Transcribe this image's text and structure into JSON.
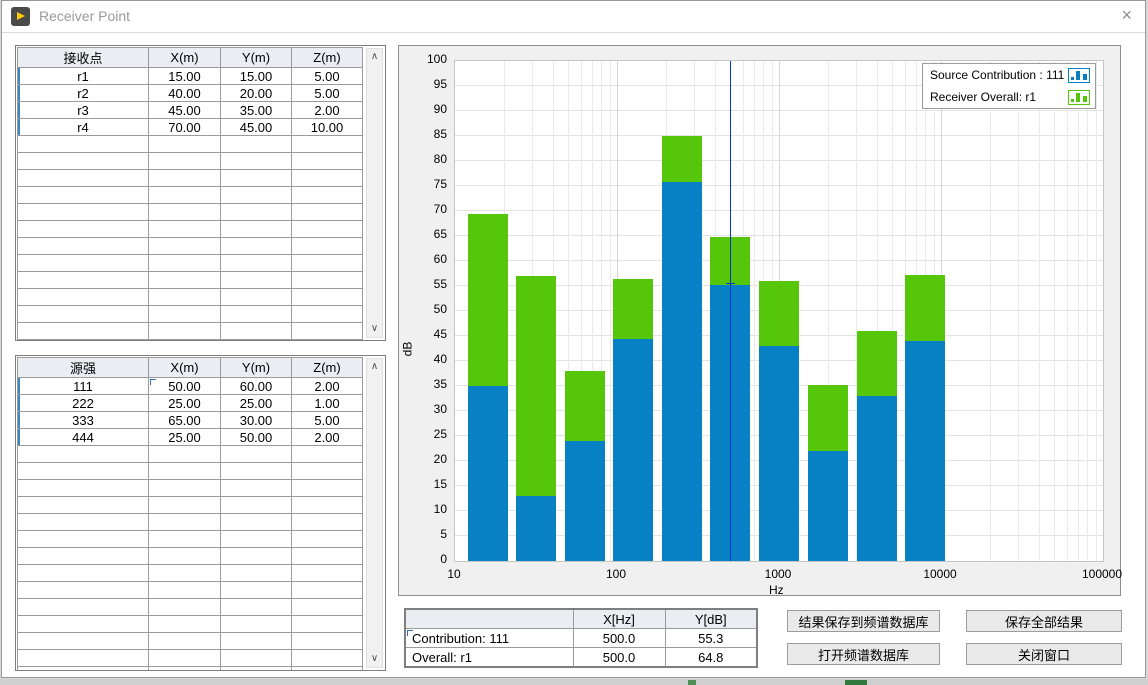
{
  "window": {
    "title": "Receiver Point",
    "close_label": "×"
  },
  "receiver_table": {
    "headers": [
      "接收点",
      "X(m)",
      "Y(m)",
      "Z(m)"
    ],
    "rows": [
      [
        "r1",
        "15.00",
        "15.00",
        "5.00"
      ],
      [
        "r2",
        "40.00",
        "20.00",
        "5.00"
      ],
      [
        "r3",
        "45.00",
        "35.00",
        "2.00"
      ],
      [
        "r4",
        "70.00",
        "45.00",
        "10.00"
      ]
    ],
    "empty_rows": 12
  },
  "source_table": {
    "headers": [
      "源强",
      "X(m)",
      "Y(m)",
      "Z(m)"
    ],
    "rows": [
      [
        "111",
        "50.00",
        "60.00",
        "2.00"
      ],
      [
        "222",
        "25.00",
        "25.00",
        "1.00"
      ],
      [
        "333",
        "65.00",
        "30.00",
        "5.00"
      ],
      [
        "444",
        "25.00",
        "50.00",
        "2.00"
      ]
    ],
    "empty_rows": 14,
    "focus_cell": [
      0,
      1
    ]
  },
  "chart_data": {
    "type": "bar",
    "stacked": true,
    "x_scale": "log",
    "xlabel": "Hz",
    "ylabel": "dB",
    "ylim": [
      0,
      100
    ],
    "y_tick_step": 5,
    "x_ticks": [
      10,
      100,
      1000,
      10000,
      100000
    ],
    "frequencies": [
      16,
      31.5,
      63,
      125,
      250,
      500,
      1000,
      2000,
      4000,
      8000
    ],
    "series": [
      {
        "name": "Source Contribution : 111",
        "color": "#0780c4",
        "values": [
          35,
          13,
          24,
          44.5,
          75.8,
          55.3,
          43,
          22,
          33,
          44
        ]
      },
      {
        "name": "Receiver Overall: r1",
        "color": "#56c60a",
        "values": [
          69.5,
          57,
          38,
          56.4,
          85,
          64.8,
          56,
          35.2,
          46,
          57.2
        ]
      }
    ],
    "cursor": {
      "x": 500,
      "y": 55.3,
      "color": "#0535cf"
    },
    "grid": true,
    "legend_position": "top-right"
  },
  "legend": {
    "items": [
      {
        "label": "Source Contribution : 111",
        "color": "#0780c4"
      },
      {
        "label": "Receiver Overall: r1",
        "color": "#56c60a"
      }
    ]
  },
  "cursor_table": {
    "headers": [
      "",
      "X[Hz]",
      "Y[dB]"
    ],
    "rows": [
      [
        "Contribution: 111",
        "500.0",
        "55.3"
      ],
      [
        "Overall: r1",
        "500.0",
        "64.8"
      ]
    ],
    "focus_cell": [
      0,
      0
    ]
  },
  "buttons": {
    "save_to_spectrum_db": "结果保存到频谱数据库",
    "save_all": "保存全部结果",
    "open_spectrum_db": "打开频谱数据库",
    "close_window": "关闭窗口"
  },
  "scrollbar": {
    "up_glyph": "∧",
    "down_glyph": "∨"
  }
}
